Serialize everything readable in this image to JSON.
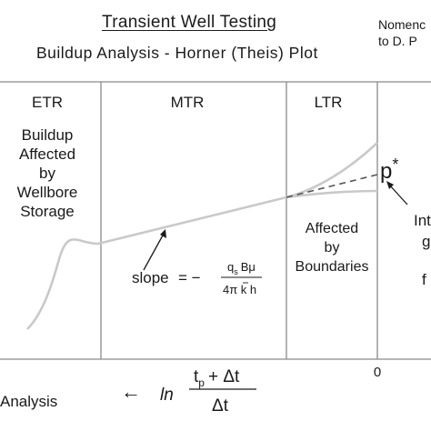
{
  "header": {
    "title": "Transient Well Testing",
    "subtitle": "Buildup Analysis - Horner (Theis) Plot",
    "note_line1": "Nomenc",
    "note_line2": "to D. P"
  },
  "regions": [
    {
      "label": "ETR",
      "note_lines": [
        "Buildup",
        "Affected",
        "by",
        "Wellbore",
        "Storage"
      ]
    },
    {
      "label": "MTR"
    },
    {
      "label": "LTR",
      "note_lines": [
        "Affected",
        "by",
        "Boundaries"
      ]
    }
  ],
  "annotations": {
    "slope_word": "slope",
    "slope_equals": "=  −",
    "slope_numerator": "q",
    "slope_numerator_sub": "s",
    "slope_numerator_rest": "Bμ",
    "slope_denominator": "4π k h",
    "pstar_base": "p",
    "pstar_sup": "*",
    "right_partial_1": "Int",
    "right_partial_2": "g",
    "right_partial_3": "f"
  },
  "axis": {
    "x_arrow": "←",
    "x_ln": "ln",
    "x_num_t": "t",
    "x_num_sub": "p",
    "x_num_rest": "+ Δt",
    "x_den": "Δt",
    "x_end_tick": "0"
  },
  "footer": {
    "left_text": "Analysis"
  },
  "colors": {
    "curve": "#c9c9c9",
    "lines": "#8a8a8a",
    "text": "#1a1a1a",
    "dashed": "#555555"
  }
}
